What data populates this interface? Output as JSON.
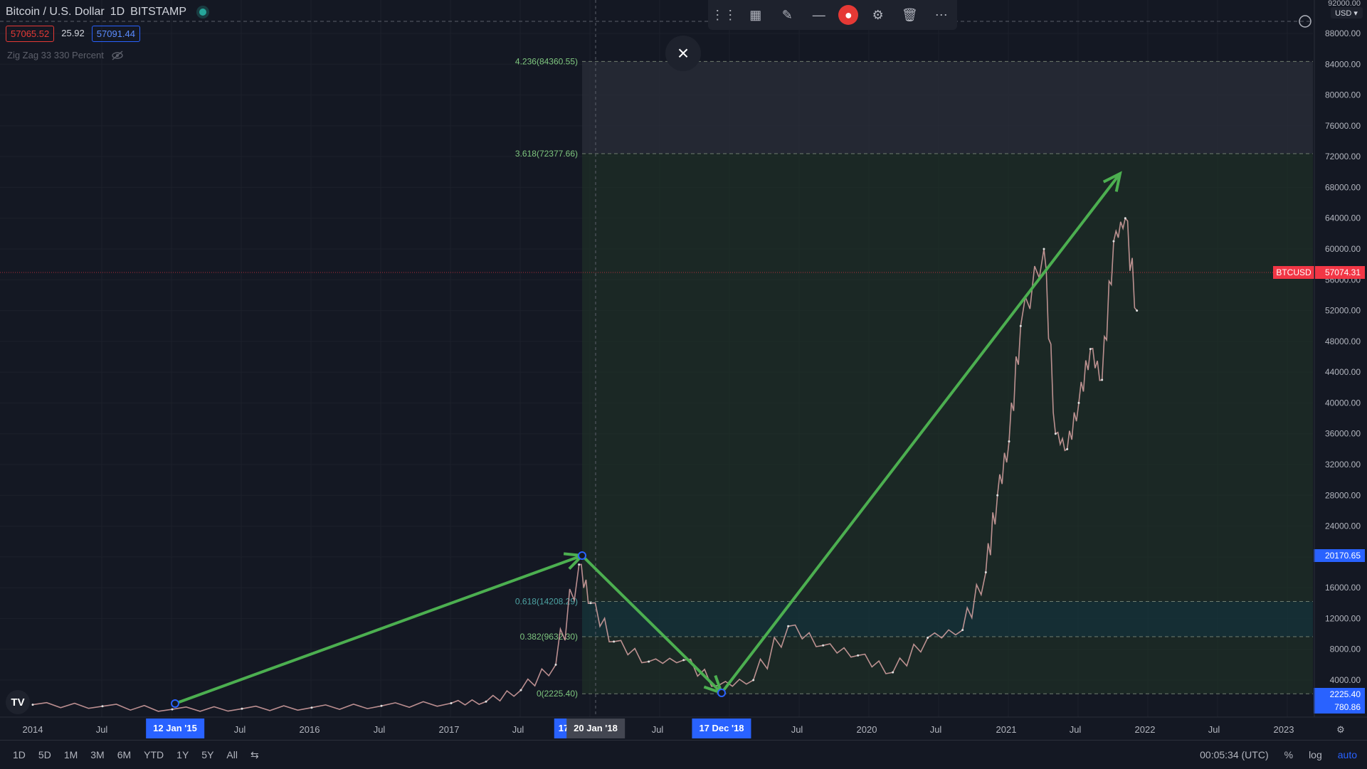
{
  "header": {
    "symbol": "Bitcoin / U.S. Dollar",
    "interval": "1D",
    "exchange": "BITSTAMP",
    "bid": "57065.52",
    "spread": "25.92",
    "ask": "57091.44",
    "indicator": "Zig Zag 33 330 Percent"
  },
  "toolbar": [
    "drag-handle-icon",
    "add-layout-icon",
    "pencil-icon",
    "line-width-icon",
    "mic-icon",
    "settings-icon",
    "trash-icon",
    "more-icon"
  ],
  "close_label": "×",
  "currency": "USD",
  "price_axis": {
    "labels": [
      "88000.00",
      "84000.00",
      "80000.00",
      "76000.00",
      "72000.00",
      "68000.00",
      "64000.00",
      "60000.00",
      "56000.00",
      "52000.00",
      "48000.00",
      "44000.00",
      "40000.00",
      "36000.00",
      "32000.00",
      "28000.00",
      "24000.00",
      "16000.00",
      "12000.00",
      "8000.00",
      "4000.00"
    ],
    "partial_top": "92000.00",
    "current_label": "BTCUSD",
    "current_value": "57074.31",
    "marker_high": "20170.65",
    "marker_low": "2225.40",
    "marker_extra": "780.86"
  },
  "fib_levels": [
    {
      "label": "4.236(84360.55)",
      "value": 84360.55
    },
    {
      "label": "3.618(72377.66)",
      "value": 72377.66
    },
    {
      "label": "0.618(14208.29)",
      "value": 14208.29
    },
    {
      "label": "0.382(9632.30)",
      "value": 9632.3
    },
    {
      "label": "0(2225.40)",
      "value": 2225.4
    }
  ],
  "time_axis": {
    "labels": [
      "2014",
      "Jul",
      "Jul",
      "2016",
      "Jul",
      "2017",
      "Jul",
      "Jul",
      "2020",
      "Jul",
      "2021",
      "Jul",
      "2022",
      "Jul",
      "2023"
    ],
    "highlight_1": "12 Jan '15",
    "highlight_2": "20 Jan '18",
    "highlight_2_partial": "17",
    "highlight_3": "17 Dec '18",
    "extra_jul": [
      "Jul",
      "Jul"
    ]
  },
  "bottom": {
    "ranges": [
      "1D",
      "5D",
      "1M",
      "3M",
      "6M",
      "YTD",
      "1Y",
      "5Y",
      "All"
    ],
    "clock": "00:05:34 (UTC)",
    "percent": "%",
    "log": "log",
    "auto": "auto"
  },
  "colors": {
    "background": "#141823",
    "accent": "#2962ff",
    "arrow": "#4caf50",
    "fib_text": "#7fc77f",
    "price_tag": "#f23645",
    "grid": "#1f2330"
  },
  "chart_data": {
    "type": "line",
    "title": "Bitcoin / U.S. Dollar",
    "x": [
      "2014-01",
      "2014-07",
      "2015-01",
      "2015-07",
      "2016-01",
      "2016-07",
      "2017-01",
      "2017-04",
      "2017-07",
      "2017-10",
      "2017-12",
      "2018-01",
      "2018-03",
      "2018-06",
      "2018-09",
      "2018-12",
      "2019-03",
      "2019-06",
      "2019-09",
      "2019-12",
      "2020-03",
      "2020-06",
      "2020-09",
      "2020-11",
      "2020-12",
      "2021-01",
      "2021-02",
      "2021-04",
      "2021-05",
      "2021-06",
      "2021-07",
      "2021-08",
      "2021-09",
      "2021-10",
      "2021-11",
      "2021-12"
    ],
    "series": [
      {
        "values": [
          800,
          600,
          200,
          280,
          420,
          650,
          1000,
          1200,
          2700,
          6000,
          19000,
          14000,
          9000,
          6400,
          6600,
          3300,
          4000,
          11000,
          8500,
          7200,
          5000,
          9500,
          10500,
          18000,
          28000,
          35000,
          50000,
          60000,
          36000,
          34000,
          40000,
          47000,
          43000,
          61000,
          64000,
          52000
        ]
      }
    ],
    "ylim": [
      0,
      92000
    ]
  }
}
